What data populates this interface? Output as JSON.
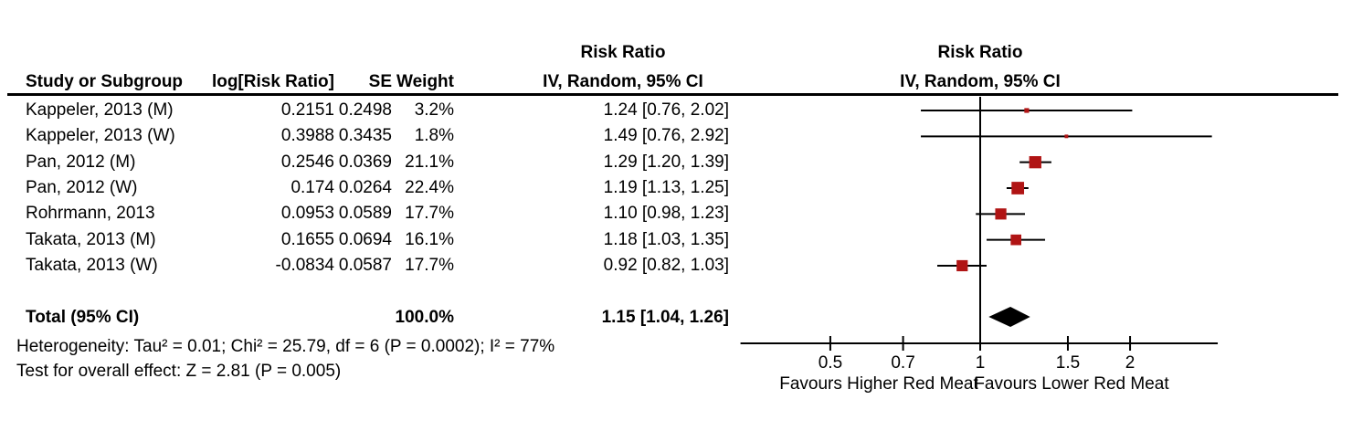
{
  "columns": {
    "study": "Study or Subgroup",
    "log_effect": "log[Risk Ratio]",
    "se": "SE",
    "weight": "Weight",
    "effect_ci_line1": "Risk Ratio",
    "effect_ci_line2": "IV, Random, 95% CI",
    "plot_line1": "Risk Ratio",
    "plot_line2": "IV, Random, 95% CI"
  },
  "chart_data": {
    "type": "scatter",
    "subtype": "forest-plot",
    "title": "Risk Ratio, IV, Random, 95% CI",
    "x_scale": "log",
    "axis": {
      "min": 0.33,
      "max": 3.0,
      "null_line": 1,
      "ticks": [
        "0.5",
        "0.7",
        "1",
        "1.5",
        "2"
      ],
      "left_label": "Favours Higher Red Meat",
      "right_label": "Favours Lower Red Meat"
    },
    "rows": [
      {
        "study": "Kappeler, 2013 (M)",
        "log_rr": "0.2151",
        "se": "0.2498",
        "weight": "3.2%",
        "weight_value": 3.2,
        "rr": 1.24,
        "ci_low": 0.76,
        "ci_high": 2.02,
        "rr_text": "1.24 [0.76, 2.02]"
      },
      {
        "study": "Kappeler, 2013 (W)",
        "log_rr": "0.3988",
        "se": "0.3435",
        "weight": "1.8%",
        "weight_value": 1.8,
        "rr": 1.49,
        "ci_low": 0.76,
        "ci_high": 2.92,
        "rr_text": "1.49 [0.76, 2.92]"
      },
      {
        "study": "Pan, 2012 (M)",
        "log_rr": "0.2546",
        "se": "0.0369",
        "weight": "21.1%",
        "weight_value": 21.1,
        "rr": 1.29,
        "ci_low": 1.2,
        "ci_high": 1.39,
        "rr_text": "1.29 [1.20, 1.39]"
      },
      {
        "study": "Pan, 2012 (W)",
        "log_rr": "0.174",
        "se": "0.0264",
        "weight": "22.4%",
        "weight_value": 22.4,
        "rr": 1.19,
        "ci_low": 1.13,
        "ci_high": 1.25,
        "rr_text": "1.19 [1.13, 1.25]"
      },
      {
        "study": "Rohrmann, 2013",
        "log_rr": "0.0953",
        "se": "0.0589",
        "weight": "17.7%",
        "weight_value": 17.7,
        "rr": 1.1,
        "ci_low": 0.98,
        "ci_high": 1.23,
        "rr_text": "1.10 [0.98, 1.23]"
      },
      {
        "study": "Takata, 2013 (M)",
        "log_rr": "0.1655",
        "se": "0.0694",
        "weight": "16.1%",
        "weight_value": 16.1,
        "rr": 1.18,
        "ci_low": 1.03,
        "ci_high": 1.35,
        "rr_text": "1.18 [1.03, 1.35]"
      },
      {
        "study": "Takata, 2013 (W)",
        "log_rr": "-0.0834",
        "se": "0.0587",
        "weight": "17.7%",
        "weight_value": 17.7,
        "rr": 0.92,
        "ci_low": 0.82,
        "ci_high": 1.03,
        "rr_text": "0.92 [0.82, 1.03]"
      }
    ],
    "total": {
      "label": "Total (95% CI)",
      "weight": "100.0%",
      "rr": 1.15,
      "ci_low": 1.04,
      "ci_high": 1.26,
      "rr_text": "1.15 [1.04, 1.26]"
    }
  },
  "footer": {
    "heterogeneity": "Heterogeneity: Tau² = 0.01; Chi² = 25.79, df = 6 (P = 0.0002); I² = 77%",
    "overall_effect": "Test for overall effect: Z = 2.81 (P = 0.005)"
  },
  "colors": {
    "marker": "#B01414",
    "diamond": "#000000",
    "line": "#000000",
    "text": "#000000",
    "background": "#FFFFFF"
  }
}
